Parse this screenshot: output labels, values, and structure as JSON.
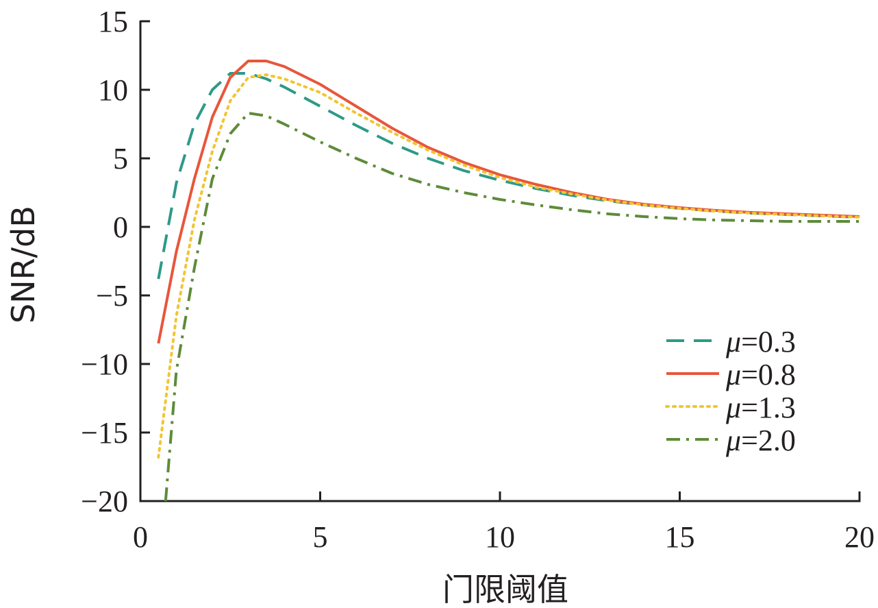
{
  "chart_data": {
    "type": "line",
    "title": "",
    "xlabel": "门限阈值",
    "ylabel": "SNR/dB",
    "xlim": [
      0,
      20
    ],
    "ylim": [
      -20,
      15
    ],
    "xticks": [
      0,
      5,
      10,
      15,
      20
    ],
    "yticks": [
      15,
      10,
      5,
      0,
      -5,
      -10,
      -15,
      -20
    ],
    "xtick_labels": [
      "0",
      "5",
      "10",
      "15",
      "20"
    ],
    "ytick_labels": [
      "15",
      "10",
      "5",
      "0",
      "−5",
      "−10",
      "−15",
      "−20"
    ],
    "grid": false,
    "legend_position": "lower-right",
    "series": [
      {
        "name": "μ=0.3",
        "legend_prefix": "μ",
        "legend_suffix": "=0.3",
        "color": "#2e9a86",
        "style": "dashed",
        "x": [
          0.5,
          1,
          1.5,
          2,
          2.5,
          3,
          3.5,
          4,
          5,
          6,
          7,
          8,
          9,
          10,
          11,
          12,
          13,
          14,
          15,
          16,
          17,
          18,
          19,
          20
        ],
        "y": [
          -3.8,
          3.2,
          7.5,
          10.0,
          11.2,
          11.2,
          10.8,
          10.2,
          8.8,
          7.4,
          6.1,
          5.0,
          4.1,
          3.4,
          2.8,
          2.3,
          1.9,
          1.6,
          1.35,
          1.15,
          1.0,
          0.9,
          0.8,
          0.7
        ]
      },
      {
        "name": "μ=0.8",
        "legend_prefix": "μ",
        "legend_suffix": "=0.8",
        "color": "#e8563a",
        "style": "solid",
        "x": [
          0.5,
          1,
          1.5,
          2,
          2.5,
          3,
          3.5,
          4,
          5,
          6,
          7,
          8,
          9,
          10,
          11,
          12,
          13,
          14,
          15,
          16,
          17,
          18,
          19,
          20
        ],
        "y": [
          -8.5,
          -1.8,
          3.5,
          8.0,
          10.9,
          12.1,
          12.1,
          11.7,
          10.4,
          8.8,
          7.2,
          5.8,
          4.7,
          3.8,
          3.1,
          2.5,
          2.0,
          1.65,
          1.4,
          1.2,
          1.05,
          0.95,
          0.85,
          0.75
        ]
      },
      {
        "name": "μ=1.3",
        "legend_prefix": "μ",
        "legend_suffix": "=1.3",
        "color": "#f2c431",
        "style": "dotted",
        "x": [
          0.5,
          1,
          1.5,
          2,
          2.5,
          3,
          3.5,
          4,
          5,
          6,
          7,
          8,
          9,
          10,
          11,
          12,
          13,
          14,
          15,
          16,
          17,
          18,
          19,
          20
        ],
        "y": [
          -16.8,
          -6.5,
          0.5,
          5.5,
          9.2,
          10.9,
          11.1,
          10.8,
          9.8,
          8.3,
          6.9,
          5.6,
          4.5,
          3.6,
          2.9,
          2.4,
          1.95,
          1.6,
          1.35,
          1.15,
          1.0,
          0.9,
          0.8,
          0.7
        ]
      },
      {
        "name": "μ=2.0",
        "legend_prefix": "μ",
        "legend_suffix": "=2.0",
        "color": "#5e8b3a",
        "style": "dashdot",
        "x": [
          0.7,
          1,
          1.5,
          2,
          2.5,
          3,
          3.5,
          4,
          5,
          6,
          7,
          8,
          9,
          10,
          11,
          12,
          13,
          14,
          15,
          16,
          17,
          18,
          19,
          20
        ],
        "y": [
          -20,
          -10.5,
          -3.0,
          3.5,
          6.8,
          8.3,
          8.1,
          7.5,
          6.2,
          5.0,
          3.9,
          3.1,
          2.5,
          2.0,
          1.6,
          1.25,
          0.95,
          0.75,
          0.6,
          0.5,
          0.45,
          0.4,
          0.4,
          0.4
        ]
      }
    ]
  }
}
